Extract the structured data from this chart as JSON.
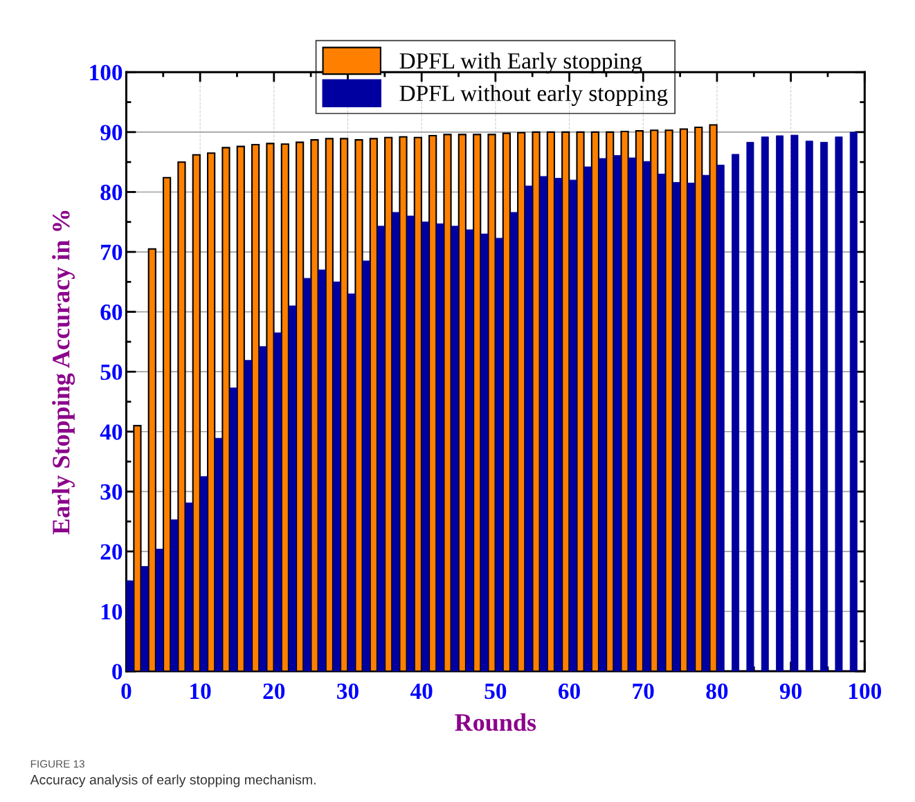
{
  "chart_data": {
    "type": "bar",
    "xlabel": "Rounds",
    "ylabel": "Early Stopping Accuracy in %",
    "series": [
      {
        "name": "DPFL with Early stopping",
        "color": "#ff8000",
        "x": [
          1.5,
          3.5,
          5.5,
          7.5,
          9.5,
          11.5,
          13.5,
          15.5,
          17.5,
          19.5,
          21.5,
          23.5,
          25.5,
          27.5,
          29.5,
          31.5,
          33.5,
          35.5,
          37.5,
          39.5,
          41.5,
          43.5,
          45.5,
          47.5,
          49.5,
          51.5,
          53.5,
          55.5,
          57.5,
          59.5,
          61.5,
          63.5,
          65.5,
          67.5,
          69.5,
          71.5,
          73.5,
          75.5,
          77.5,
          79.5
        ],
        "values": [
          41.0,
          70.5,
          82.4,
          85.0,
          86.2,
          86.5,
          87.4,
          87.6,
          87.9,
          88.1,
          88.0,
          88.3,
          88.7,
          88.9,
          88.9,
          88.7,
          88.9,
          89.1,
          89.2,
          89.1,
          89.4,
          89.6,
          89.6,
          89.6,
          89.6,
          89.8,
          89.9,
          90.0,
          90.0,
          90.0,
          90.0,
          90.0,
          90.0,
          90.1,
          90.2,
          90.3,
          90.3,
          90.5,
          90.8,
          91.2
        ]
      },
      {
        "name": "DPFL without early stopping",
        "color": "#0000a0",
        "x": [
          0.5,
          2.5,
          4.5,
          6.5,
          8.5,
          10.5,
          12.5,
          14.5,
          16.5,
          18.5,
          20.5,
          22.5,
          24.5,
          26.5,
          28.5,
          30.5,
          32.5,
          34.5,
          36.5,
          38.5,
          40.5,
          42.5,
          44.5,
          46.5,
          48.5,
          50.5,
          52.5,
          54.5,
          56.5,
          58.5,
          60.5,
          62.5,
          64.5,
          66.5,
          68.5,
          70.5,
          72.5,
          74.5,
          76.5,
          78.5,
          80.5,
          82.5,
          84.5,
          86.5,
          88.5,
          90.5,
          92.5,
          94.5,
          96.5,
          98.5
        ],
        "values": [
          15.1,
          17.5,
          20.4,
          25.3,
          28.1,
          32.5,
          38.9,
          47.3,
          51.9,
          54.2,
          56.5,
          61.0,
          65.6,
          67.0,
          65.0,
          63.0,
          68.5,
          74.3,
          76.6,
          76.0,
          75.0,
          74.7,
          74.3,
          73.7,
          73.0,
          72.3,
          76.6,
          81.0,
          82.6,
          82.3,
          82.0,
          84.2,
          85.6,
          86.1,
          85.7,
          85.1,
          83.0,
          81.6,
          81.5,
          82.8,
          84.5,
          86.3,
          88.3,
          89.2,
          89.4,
          89.5,
          88.5,
          88.3,
          89.2,
          90.0
        ]
      }
    ],
    "xlim": [
      0,
      100
    ],
    "xticks": [
      0,
      10,
      20,
      30,
      40,
      50,
      60,
      70,
      80,
      90,
      100
    ],
    "ylim": [
      0,
      100
    ],
    "yticks": [
      0,
      10,
      20,
      30,
      40,
      50,
      60,
      70,
      80,
      90,
      100
    ],
    "grid": true,
    "legend": "top",
    "annotations": [
      "FIGURE 13",
      "Accuracy analysis of early stopping mechanism."
    ]
  }
}
